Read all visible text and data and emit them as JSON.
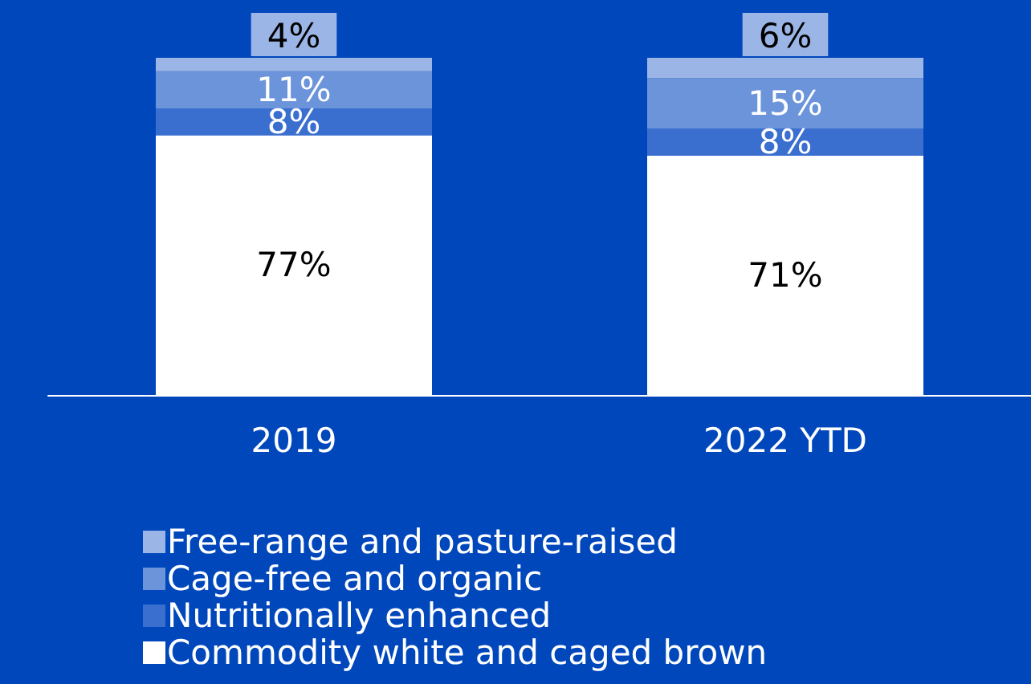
{
  "chart_data": {
    "type": "bar",
    "stacked": true,
    "categories": [
      "2019",
      "2022 YTD"
    ],
    "series": [
      {
        "name": "Commodity white and caged brown",
        "color": "#ffffff",
        "values": [
          77,
          71
        ],
        "value_labels": [
          "77%",
          "71%"
        ]
      },
      {
        "name": "Nutritionally enhanced",
        "color": "#3a6fcf",
        "values": [
          8,
          8
        ],
        "value_labels": [
          "8%",
          "8%"
        ]
      },
      {
        "name": "Cage-free and organic",
        "color": "#6b94da",
        "values": [
          11,
          15
        ],
        "value_labels": [
          "11%",
          "15%"
        ]
      },
      {
        "name": "Free-range and pasture-raised",
        "color": "#9bb5e6",
        "values": [
          4,
          6
        ],
        "value_labels": [
          "4%",
          "6%"
        ]
      }
    ],
    "legend": "bottom left"
  }
}
